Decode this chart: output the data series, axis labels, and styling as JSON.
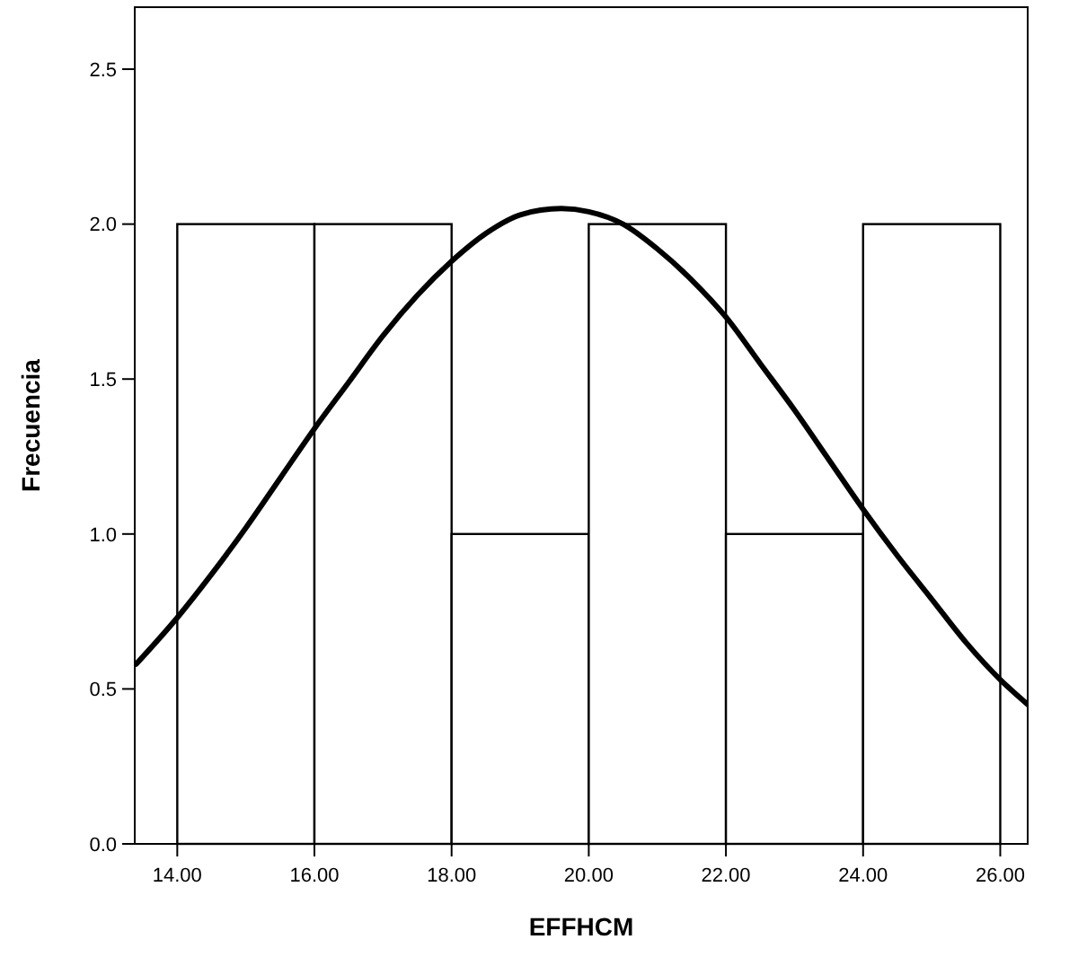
{
  "chart_data": {
    "type": "histogram",
    "xlabel": "EFFHCM",
    "ylabel": "Frecuencia",
    "bins": [
      14,
      16,
      18,
      20,
      22,
      24,
      26
    ],
    "values": [
      2,
      2,
      1,
      2,
      1,
      2
    ],
    "color": "#ffffff",
    "series": [
      {
        "type": "line",
        "color": "#000000",
        "x": [
          13.4,
          14,
          14.5,
          15,
          15.5,
          16,
          16.5,
          17,
          17.5,
          18,
          18.5,
          19,
          19.6,
          20,
          20.5,
          21,
          21.5,
          22,
          22.5,
          23,
          23.5,
          24,
          24.5,
          25,
          25.5,
          26,
          26.4
        ],
        "values": [
          0.58,
          0.73,
          0.87,
          1.02,
          1.18,
          1.34,
          1.49,
          1.64,
          1.77,
          1.88,
          1.97,
          2.03,
          2.05,
          2.04,
          2.0,
          1.92,
          1.82,
          1.7,
          1.55,
          1.4,
          1.24,
          1.08,
          0.93,
          0.79,
          0.65,
          0.53,
          0.45
        ]
      }
    ],
    "xlim": [
      13.38,
      26.4
    ],
    "ylim": [
      0,
      2.7
    ],
    "xticks": [
      {
        "value": 14,
        "label": "14.00"
      },
      {
        "value": 16,
        "label": "16.00"
      },
      {
        "value": 18,
        "label": "18.00"
      },
      {
        "value": 20,
        "label": "20.00"
      },
      {
        "value": 22,
        "label": "22.00"
      },
      {
        "value": 24,
        "label": "24.00"
      },
      {
        "value": 26,
        "label": "26.00"
      }
    ],
    "yticks": [
      {
        "value": 0,
        "label": "0.0"
      },
      {
        "value": 0.5,
        "label": "0.5"
      },
      {
        "value": 1,
        "label": "1.0"
      },
      {
        "value": 1.5,
        "label": "1.5"
      },
      {
        "value": 2,
        "label": "2.0"
      },
      {
        "value": 2.5,
        "label": "2.5"
      }
    ],
    "grid": false
  }
}
